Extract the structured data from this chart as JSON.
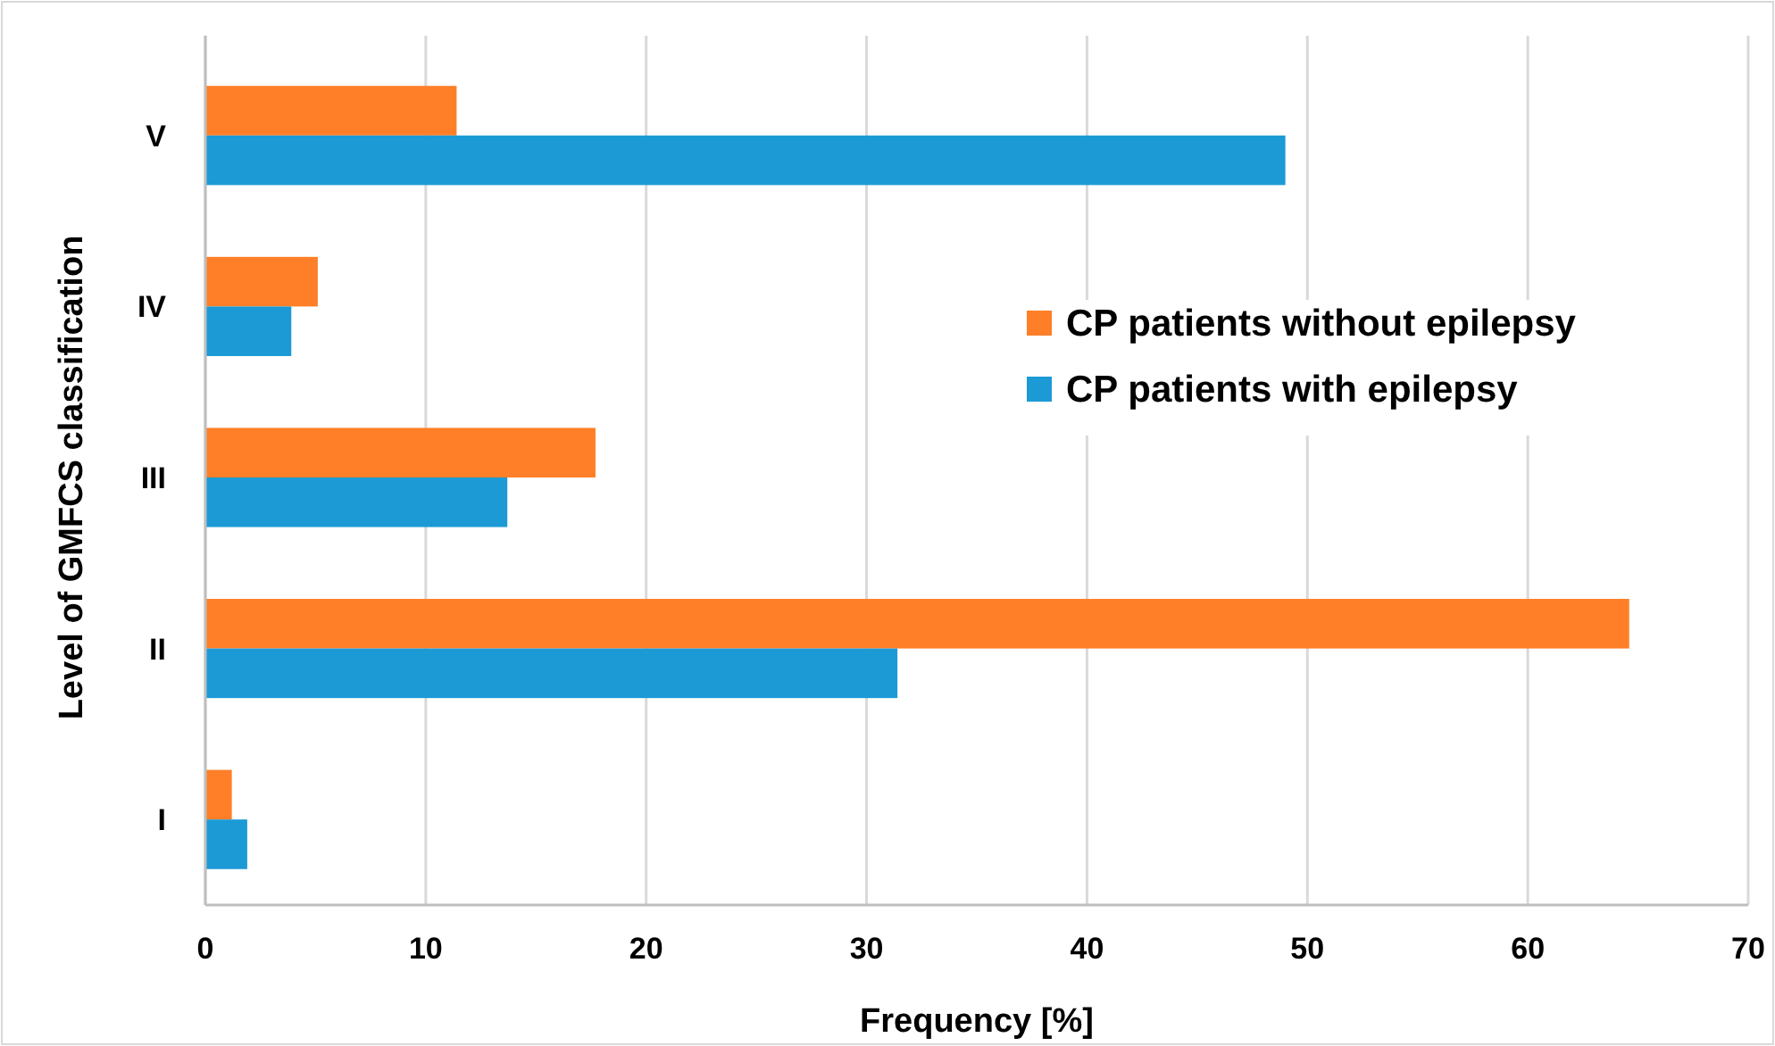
{
  "chart_data": {
    "type": "bar",
    "orientation": "horizontal",
    "xlabel": "Frequency [%]",
    "ylabel": "Level of GMFCS classification",
    "categories": [
      "V",
      "IV",
      "III",
      "II",
      "I"
    ],
    "series": [
      {
        "name": "CP patients without epilepsy",
        "color": "#fe7f27",
        "values": [
          11.4,
          5.1,
          17.7,
          64.6,
          1.2
        ]
      },
      {
        "name": "CP patients with epilepsy",
        "color": "#1c9ad6",
        "values": [
          49.0,
          3.9,
          13.7,
          31.4,
          1.9
        ]
      }
    ],
    "xlim": [
      0,
      70
    ],
    "xticks": [
      0,
      10,
      20,
      30,
      40,
      50,
      60,
      70
    ],
    "grid": "x",
    "legend": "right"
  }
}
